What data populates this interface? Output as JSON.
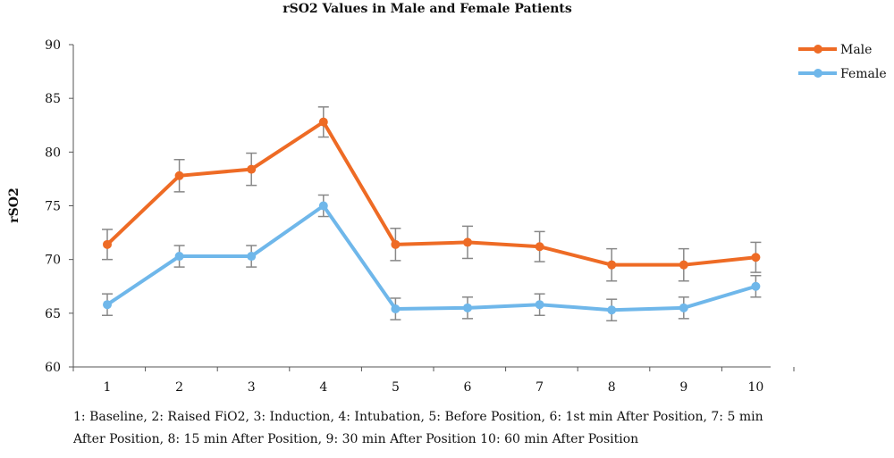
{
  "chart_data": {
    "type": "line",
    "title": "rSO2 Values in Male and Female Patients",
    "xlabel": "",
    "ylabel": "rSO2",
    "categories": [
      "1",
      "2",
      "3",
      "4",
      "5",
      "6",
      "7",
      "8",
      "9",
      "10"
    ],
    "ylim": [
      60,
      90
    ],
    "yticks": [
      60,
      65,
      70,
      75,
      80,
      85,
      90
    ],
    "grid": false,
    "legend_position": "top-right",
    "series": [
      {
        "name": "Male",
        "color": "#ee6b25",
        "values": [
          71.4,
          77.8,
          78.4,
          82.8,
          71.4,
          71.6,
          71.2,
          69.5,
          69.5,
          70.2
        ],
        "error": [
          1.4,
          1.5,
          1.5,
          1.4,
          1.5,
          1.5,
          1.4,
          1.5,
          1.5,
          1.4
        ]
      },
      {
        "name": "Female",
        "color": "#6fb7ea",
        "values": [
          65.8,
          70.3,
          70.3,
          75.0,
          65.4,
          65.5,
          65.8,
          65.3,
          65.5,
          67.5
        ],
        "error": [
          1.0,
          1.0,
          1.0,
          1.0,
          1.0,
          1.0,
          1.0,
          1.0,
          1.0,
          1.0
        ]
      }
    ]
  },
  "caption": {
    "line1": "1: Baseline, 2: Raised FiO2, 3: Induction, 4: Intubation, 5: Before Position, 6: 1st min After Position, 7: 5 min",
    "line2": "After Position, 8: 15 min After Position, 9: 30 min After Position 10: 60 min After Position"
  }
}
